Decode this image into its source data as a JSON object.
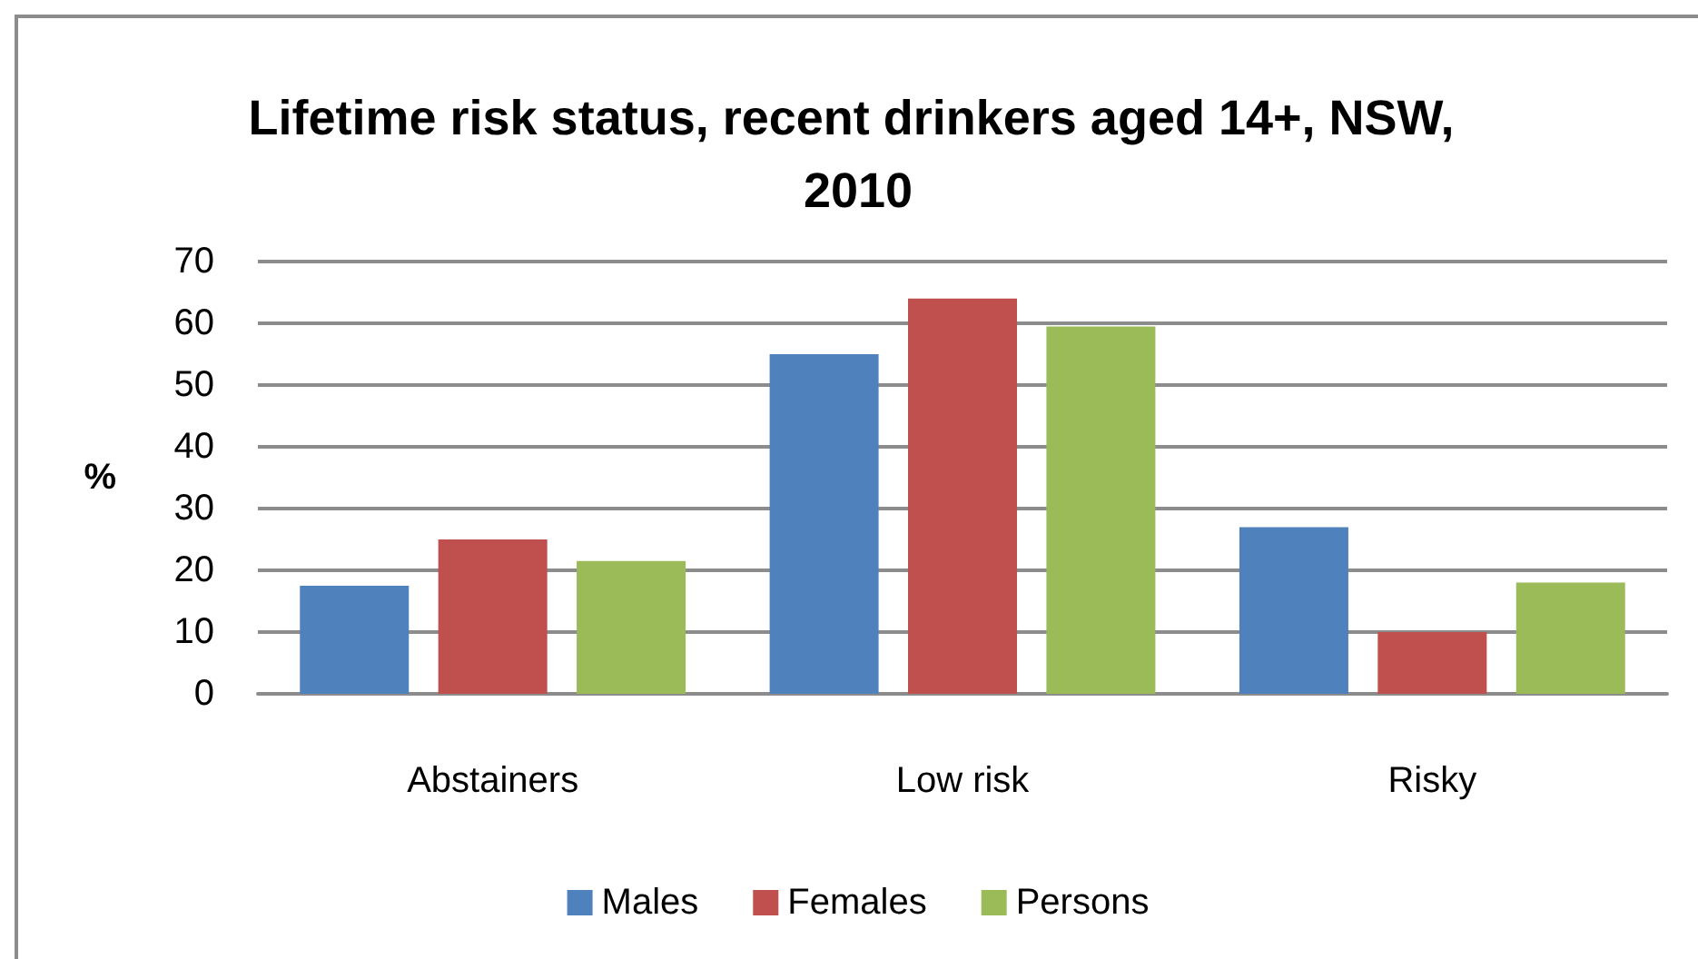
{
  "chart_data": {
    "type": "bar",
    "title": "Lifetime risk status, recent drinkers aged 14+, NSW, 2010",
    "ylabel": "%",
    "categories": [
      "Abstainers",
      "Low risk",
      "Risky"
    ],
    "series": [
      {
        "name": "Males",
        "color": "#4f81bd",
        "values": [
          17.5,
          55,
          27
        ]
      },
      {
        "name": "Females",
        "color": "#c0504d",
        "values": [
          25,
          64,
          10
        ]
      },
      {
        "name": "Persons",
        "color": "#9bbb59",
        "values": [
          21.5,
          59.5,
          18
        ]
      }
    ],
    "ylim": [
      0,
      70
    ],
    "yticks": [
      0,
      10,
      20,
      30,
      40,
      50,
      60,
      70
    ],
    "grid": "y",
    "legend": "bottom"
  }
}
